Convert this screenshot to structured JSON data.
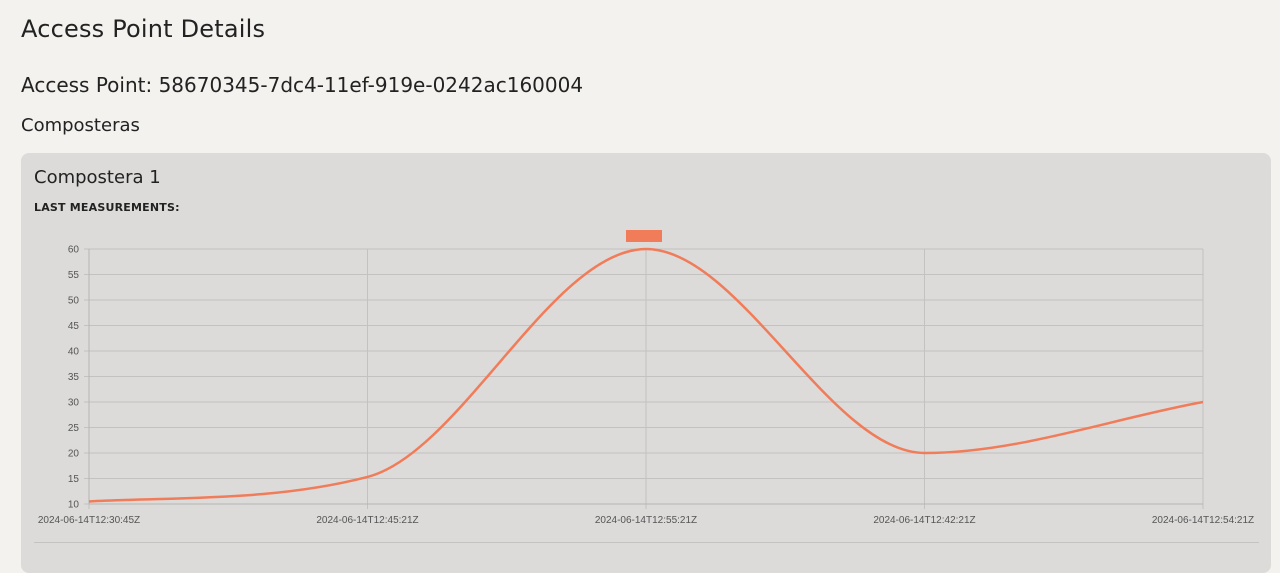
{
  "page": {
    "title": "Access Point Details"
  },
  "access_point": {
    "heading": "Access Point: 58670345-7dc4-11ef-919e-0242ac160004"
  },
  "section": {
    "title": "Composteras"
  },
  "cards": [
    {
      "title": "Compostera 1",
      "subtitle": "LAST MEASUREMENTS:"
    }
  ],
  "colors": {
    "series": "#f07c5a",
    "grid": "#c3c2c0",
    "axis_text": "#555555",
    "background": "#f3f2ef",
    "card": "#dcdbd9"
  },
  "chart_data": {
    "type": "line",
    "x": [
      "2024-06-14T12:30:45Z",
      "2024-06-14T12:45:21Z",
      "2024-06-14T12:55:21Z",
      "2024-06-14T12:42:21Z",
      "2024-06-14T12:54:21Z"
    ],
    "series": [
      {
        "values": [
          10.5,
          15.3,
          60,
          20,
          30
        ]
      }
    ],
    "yticks": [
      10,
      15,
      20,
      25,
      30,
      35,
      40,
      45,
      50,
      55,
      60
    ],
    "ylim": [
      10,
      60
    ],
    "grid": true,
    "legend": "top-center",
    "curve": "smooth"
  }
}
